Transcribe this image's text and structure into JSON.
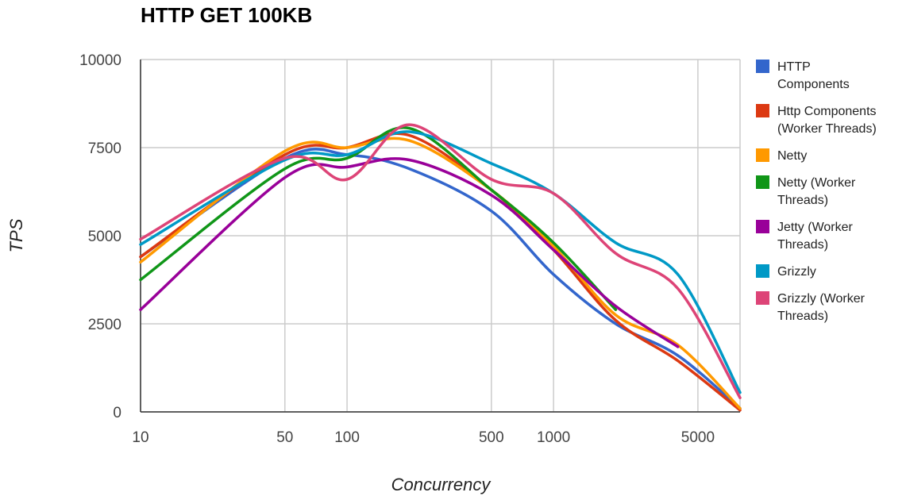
{
  "chart_data": {
    "type": "line",
    "title": "HTTP GET 100KB",
    "xlabel": "Concurrency",
    "ylabel": "TPS",
    "x_scale": "log",
    "xlim": [
      10,
      8000
    ],
    "ylim": [
      0,
      10000
    ],
    "x_ticks": [
      10,
      50,
      100,
      500,
      1000,
      5000
    ],
    "y_ticks": [
      0,
      2500,
      5000,
      7500,
      10000
    ],
    "y_tick_labels": [
      "0",
      "2500",
      "5000",
      "7500",
      "10000"
    ],
    "grid": true,
    "legend_position": "right",
    "series": [
      {
        "name": "HTTP Components",
        "color": "#3366cc",
        "points": [
          [
            10,
            4400
          ],
          [
            50,
            7200
          ],
          [
            100,
            7300
          ],
          [
            200,
            6900
          ],
          [
            500,
            5700
          ],
          [
            1000,
            3900
          ],
          [
            2000,
            2500
          ],
          [
            4000,
            1600
          ],
          [
            8000,
            100
          ]
        ]
      },
      {
        "name": "Http Components (Worker Threads)",
        "color": "#dc3912",
        "points": [
          [
            10,
            4400
          ],
          [
            50,
            7300
          ],
          [
            100,
            7500
          ],
          [
            200,
            7850
          ],
          [
            500,
            6300
          ],
          [
            1000,
            4600
          ],
          [
            2000,
            2600
          ],
          [
            4000,
            1450
          ],
          [
            8000,
            50
          ]
        ]
      },
      {
        "name": "Netty",
        "color": "#ff9900",
        "points": [
          [
            10,
            4250
          ],
          [
            50,
            7400
          ],
          [
            100,
            7500
          ],
          [
            200,
            7700
          ],
          [
            500,
            6300
          ],
          [
            1000,
            4700
          ],
          [
            2000,
            2750
          ],
          [
            4000,
            1900
          ],
          [
            8000,
            100
          ]
        ]
      },
      {
        "name": "Netty (Worker Threads)",
        "color": "#109618",
        "points": [
          [
            10,
            3750
          ],
          [
            50,
            6900
          ],
          [
            100,
            7200
          ],
          [
            200,
            8050
          ],
          [
            500,
            6300
          ],
          [
            1000,
            4800
          ],
          [
            2000,
            2900
          ]
        ]
      },
      {
        "name": "Jetty (Worker Threads)",
        "color": "#990099",
        "points": [
          [
            10,
            2900
          ],
          [
            50,
            6650
          ],
          [
            100,
            6950
          ],
          [
            200,
            7150
          ],
          [
            500,
            6150
          ],
          [
            1000,
            4600
          ],
          [
            2000,
            3000
          ],
          [
            4000,
            1850
          ]
        ]
      },
      {
        "name": "Grizzly",
        "color": "#0099c6",
        "points": [
          [
            10,
            4750
          ],
          [
            50,
            7150
          ],
          [
            100,
            7300
          ],
          [
            200,
            7950
          ],
          [
            500,
            7050
          ],
          [
            1000,
            6200
          ],
          [
            2000,
            4800
          ],
          [
            4000,
            3900
          ],
          [
            8000,
            550
          ]
        ]
      },
      {
        "name": "Grizzly (Worker Threads)",
        "color": "#dd4477",
        "points": [
          [
            10,
            4900
          ],
          [
            50,
            7200
          ],
          [
            100,
            6600
          ],
          [
            200,
            8150
          ],
          [
            500,
            6600
          ],
          [
            1000,
            6200
          ],
          [
            2000,
            4500
          ],
          [
            4000,
            3500
          ],
          [
            8000,
            400
          ]
        ]
      }
    ]
  },
  "legend_lines": [
    [
      "HTTP",
      "Components"
    ],
    [
      "Http Components",
      "(Worker Threads)"
    ],
    [
      "Netty"
    ],
    [
      "Netty (Worker",
      "Threads)"
    ],
    [
      "Jetty (Worker",
      "Threads)"
    ],
    [
      "Grizzly"
    ],
    [
      "Grizzly (Worker",
      "Threads)"
    ]
  ]
}
